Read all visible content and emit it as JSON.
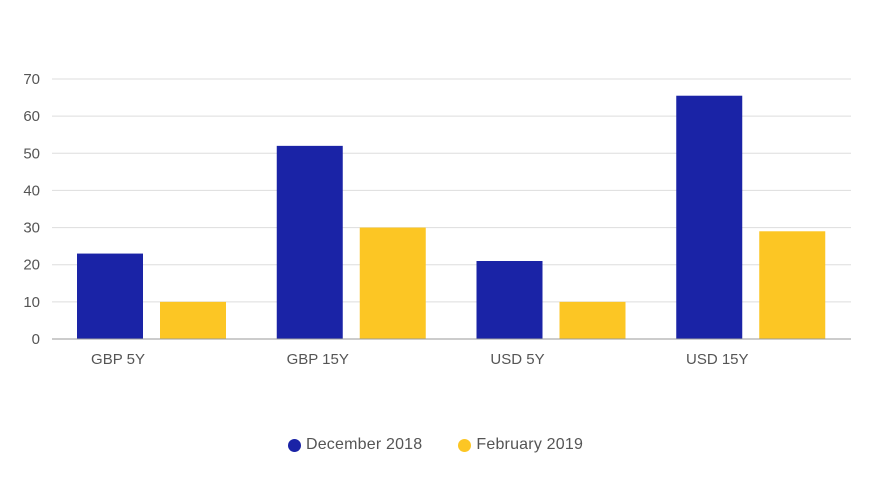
{
  "chart_data": {
    "type": "bar",
    "categories": [
      "GBP 5Y",
      "GBP 15Y",
      "USD 5Y",
      "USD 15Y"
    ],
    "series": [
      {
        "name": "December 2018",
        "values": [
          23,
          52,
          21,
          65.5
        ],
        "color": "#1a23a6"
      },
      {
        "name": "February 2019",
        "values": [
          10,
          30,
          10,
          29
        ],
        "color": "#fcc624"
      }
    ],
    "yticks": [
      0,
      10,
      20,
      30,
      40,
      50,
      60,
      70
    ],
    "ylim": [
      0,
      70
    ],
    "grid": true,
    "legend_position": "bottom",
    "title": "",
    "xlabel": "",
    "ylabel": ""
  },
  "colors": {
    "grid": "#dddddd",
    "axis": "#999999",
    "text": "#555555"
  }
}
